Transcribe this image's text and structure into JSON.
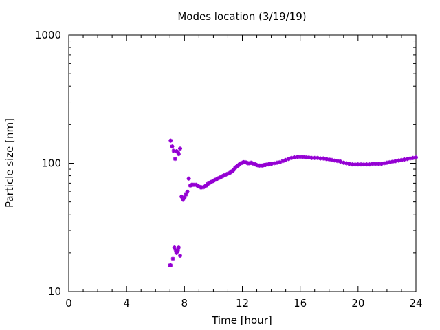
{
  "chart_data": {
    "type": "scatter",
    "title": "Modes location (3/19/19)",
    "xlabel": "Time [hour]",
    "ylabel": "Particle size [nm]",
    "xlim": [
      0,
      24
    ],
    "ylim": [
      10,
      1000
    ],
    "yscale": "log",
    "grid": false,
    "x_ticks": [
      0,
      4,
      8,
      12,
      16,
      20,
      24
    ],
    "x_tick_labels": [
      "0",
      "4",
      "8",
      "12",
      "16",
      "20",
      "24"
    ],
    "y_ticks": [
      10,
      100,
      1000
    ],
    "y_tick_labels": [
      "10",
      "100",
      "1000"
    ],
    "marker_color": "#9400d3",
    "series": [
      {
        "values": [
          [
            7.0,
            16
          ],
          [
            7.05,
            16
          ],
          [
            7.2,
            18
          ],
          [
            7.3,
            22
          ],
          [
            7.4,
            21
          ],
          [
            7.45,
            20
          ],
          [
            7.5,
            20.5
          ],
          [
            7.55,
            21
          ],
          [
            7.6,
            22
          ],
          [
            7.7,
            19
          ],
          [
            7.05,
            150
          ],
          [
            7.15,
            135
          ],
          [
            7.25,
            125
          ],
          [
            7.35,
            108
          ],
          [
            7.45,
            124
          ],
          [
            7.55,
            122
          ],
          [
            7.6,
            118
          ],
          [
            7.7,
            130
          ],
          [
            7.8,
            55
          ],
          [
            7.9,
            52
          ],
          [
            8.0,
            54
          ],
          [
            8.1,
            57
          ],
          [
            8.2,
            60
          ],
          [
            8.3,
            76
          ],
          [
            8.4,
            67
          ],
          [
            8.5,
            68
          ],
          [
            8.6,
            68
          ],
          [
            8.7,
            68
          ],
          [
            8.8,
            68
          ],
          [
            8.9,
            67
          ],
          [
            9.0,
            66
          ],
          [
            9.1,
            65
          ],
          [
            9.2,
            65
          ],
          [
            9.3,
            65
          ],
          [
            9.4,
            66
          ],
          [
            9.5,
            67
          ],
          [
            9.6,
            69
          ],
          [
            9.7,
            70
          ],
          [
            9.8,
            71
          ],
          [
            9.9,
            72
          ],
          [
            10.0,
            73
          ],
          [
            10.1,
            74
          ],
          [
            10.2,
            75
          ],
          [
            10.3,
            76
          ],
          [
            10.4,
            77
          ],
          [
            10.5,
            78
          ],
          [
            10.6,
            79
          ],
          [
            10.7,
            80
          ],
          [
            10.8,
            81
          ],
          [
            10.9,
            82
          ],
          [
            11.0,
            83
          ],
          [
            11.1,
            84
          ],
          [
            11.2,
            85
          ],
          [
            11.3,
            87
          ],
          [
            11.4,
            89
          ],
          [
            11.5,
            92
          ],
          [
            11.6,
            94
          ],
          [
            11.7,
            96
          ],
          [
            11.8,
            98
          ],
          [
            11.9,
            100
          ],
          [
            12.0,
            101
          ],
          [
            12.1,
            102
          ],
          [
            12.2,
            102
          ],
          [
            12.3,
            101
          ],
          [
            12.4,
            100
          ],
          [
            12.5,
            100
          ],
          [
            12.6,
            101
          ],
          [
            12.7,
            100
          ],
          [
            12.8,
            99
          ],
          [
            12.9,
            98
          ],
          [
            13.0,
            97
          ],
          [
            13.1,
            96
          ],
          [
            13.2,
            96
          ],
          [
            13.3,
            96
          ],
          [
            13.4,
            96
          ],
          [
            13.5,
            97
          ],
          [
            13.6,
            97
          ],
          [
            13.7,
            98
          ],
          [
            13.8,
            98
          ],
          [
            13.9,
            99
          ],
          [
            14.0,
            99
          ],
          [
            14.2,
            100
          ],
          [
            14.4,
            101
          ],
          [
            14.6,
            102
          ],
          [
            14.8,
            104
          ],
          [
            15.0,
            106
          ],
          [
            15.2,
            108
          ],
          [
            15.4,
            110
          ],
          [
            15.6,
            111
          ],
          [
            15.8,
            112
          ],
          [
            16.0,
            112
          ],
          [
            16.2,
            112
          ],
          [
            16.4,
            111
          ],
          [
            16.6,
            111
          ],
          [
            16.8,
            110
          ],
          [
            17.0,
            110
          ],
          [
            17.2,
            110
          ],
          [
            17.4,
            109
          ],
          [
            17.6,
            109
          ],
          [
            17.8,
            108
          ],
          [
            18.0,
            107
          ],
          [
            18.2,
            106
          ],
          [
            18.4,
            105
          ],
          [
            18.6,
            104
          ],
          [
            18.8,
            103
          ],
          [
            19.0,
            101
          ],
          [
            19.2,
            100
          ],
          [
            19.4,
            99
          ],
          [
            19.6,
            98
          ],
          [
            19.8,
            98
          ],
          [
            20.0,
            98
          ],
          [
            20.2,
            98
          ],
          [
            20.4,
            98
          ],
          [
            20.6,
            98
          ],
          [
            20.8,
            98
          ],
          [
            21.0,
            99
          ],
          [
            21.2,
            99
          ],
          [
            21.4,
            99
          ],
          [
            21.6,
            99
          ],
          [
            21.8,
            100
          ],
          [
            22.0,
            101
          ],
          [
            22.2,
            102
          ],
          [
            22.4,
            103
          ],
          [
            22.6,
            104
          ],
          [
            22.8,
            105
          ],
          [
            23.0,
            106
          ],
          [
            23.2,
            107
          ],
          [
            23.4,
            108
          ],
          [
            23.6,
            109
          ],
          [
            23.8,
            110
          ],
          [
            24.0,
            111
          ]
        ]
      }
    ]
  }
}
